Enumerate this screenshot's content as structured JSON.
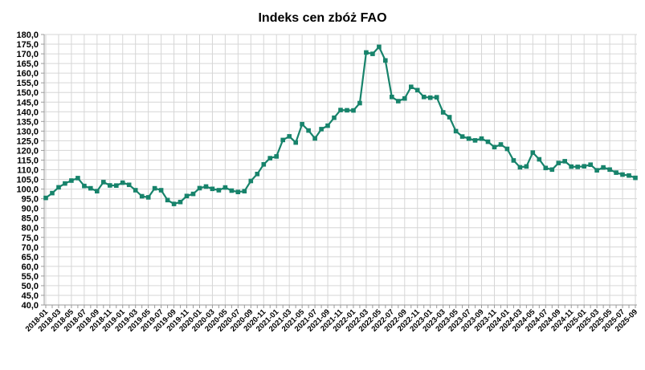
{
  "page": {
    "background": "#ffffff"
  },
  "chart_data": {
    "type": "line",
    "title": "Indeks cen zbóż FAO",
    "xlabel": "",
    "ylabel": "",
    "ylim": [
      40,
      180
    ],
    "ytick_step": 5,
    "y_tick_labels": [
      "180,0",
      "175,0",
      "170,0",
      "165,0",
      "160,0",
      "155,0",
      "150,0",
      "145,0",
      "140,0",
      "135,0",
      "130,0",
      "125,0",
      "120,0",
      "115,0",
      "110,0",
      "105,0",
      "100,0",
      "95,0",
      "90,0",
      "85,0",
      "80,0",
      "75,0",
      "70,0",
      "65,0",
      "60,0",
      "55,0",
      "50,0",
      "45,0",
      "40,0"
    ],
    "x_tick_label_every": 2,
    "grid": true,
    "legend_position": "none",
    "line_color": "#17836B",
    "marker": "square",
    "grid_color": "#D6D6D6",
    "axis_color": "#9B9B9B",
    "text_color": "#000000",
    "categories": [
      "2018-01",
      "2018-02",
      "2018-03",
      "2018-04",
      "2018-05",
      "2018-06",
      "2018-07",
      "2018-08",
      "2018-09",
      "2018-10",
      "2018-11",
      "2018-12",
      "2019-01",
      "2019-02",
      "2019-03",
      "2019-04",
      "2019-05",
      "2019-06",
      "2019-07",
      "2019-08",
      "2019-09",
      "2019-10",
      "2019-11",
      "2019-12",
      "2020-01",
      "2020-02",
      "2020-03",
      "2020-04",
      "2020-05",
      "2020-06",
      "2020-07",
      "2020-08",
      "2020-09",
      "2020-10",
      "2020-11",
      "2020-12",
      "2021-01",
      "2021-02",
      "2021-03",
      "2021-04",
      "2021-05",
      "2021-06",
      "2021-07",
      "2021-08",
      "2021-09",
      "2021-10",
      "2021-11",
      "2021-12",
      "2022-01",
      "2022-02",
      "2022-03",
      "2022-04",
      "2022-05",
      "2022-06",
      "2022-07",
      "2022-08",
      "2022-09",
      "2022-10",
      "2022-11",
      "2022-12",
      "2023-01",
      "2023-02",
      "2023-03",
      "2023-04",
      "2023-05",
      "2023-06",
      "2023-07",
      "2023-08",
      "2023-09",
      "2023-10",
      "2023-11",
      "2023-12",
      "2024-01",
      "2024-02",
      "2024-03",
      "2024-04",
      "2024-05",
      "2024-06",
      "2024-07",
      "2024-08",
      "2024-09",
      "2024-10",
      "2024-11",
      "2024-12",
      "2025-01",
      "2025-02",
      "2025-03",
      "2025-04",
      "2025-05",
      "2025-06",
      "2025-07",
      "2025-08",
      "2025-09"
    ],
    "values": [
      95.4,
      97.9,
      100.9,
      102.9,
      104.4,
      105.7,
      101.6,
      100.4,
      98.9,
      103.6,
      101.9,
      101.8,
      103.3,
      102.2,
      99.4,
      96.3,
      95.7,
      100.4,
      99.4,
      94.3,
      92.3,
      93.3,
      96.4,
      97.5,
      100.5,
      101.3,
      100.1,
      99.4,
      100.8,
      99.2,
      98.5,
      98.9,
      104.2,
      107.8,
      112.8,
      116.0,
      116.9,
      125.4,
      127.3,
      124.1,
      133.6,
      130.3,
      126.2,
      131.0,
      132.8,
      136.9,
      140.9,
      140.8,
      140.7,
      144.5,
      170.7,
      170.0,
      173.6,
      166.6,
      147.7,
      145.5,
      146.9,
      152.9,
      151.2,
      147.7,
      147.3,
      147.5,
      139.7,
      137.2,
      130.0,
      127.2,
      126.1,
      125.2,
      126.1,
      124.5,
      121.7,
      123.1,
      120.8,
      114.8,
      111.3,
      111.7,
      118.9,
      115.4,
      110.9,
      110.1,
      113.5,
      114.4,
      111.6,
      111.5,
      111.8,
      112.6,
      109.7,
      111.2,
      110.1,
      108.5,
      107.5,
      107.0,
      105.8
    ]
  }
}
